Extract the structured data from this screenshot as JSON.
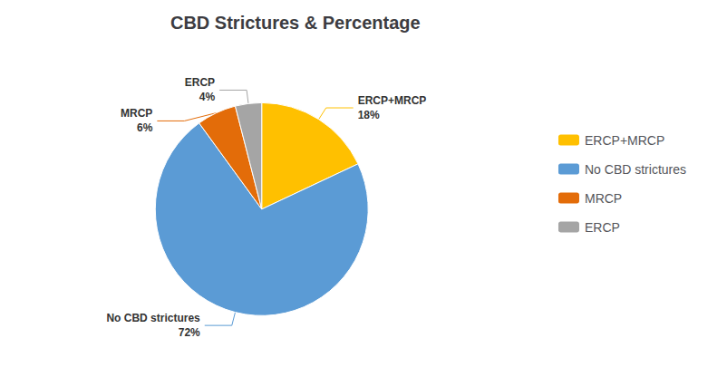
{
  "chart_data": {
    "type": "pie",
    "title": "CBD Strictures & Percentage",
    "categories": [
      "ERCP+MRCP",
      "No CBD strictures",
      "MRCP",
      "ERCP"
    ],
    "values": [
      18,
      72,
      6,
      4
    ],
    "value_labels": [
      "ERCP+MRCP\n18%",
      "No CBD strictures\n72%",
      "MRCP\n6%",
      "ERCP\n4%"
    ],
    "colors": [
      "#FFC000",
      "#5B9BD5",
      "#E36C09",
      "#A5A5A5"
    ],
    "data_labels": true,
    "legend": "right"
  }
}
